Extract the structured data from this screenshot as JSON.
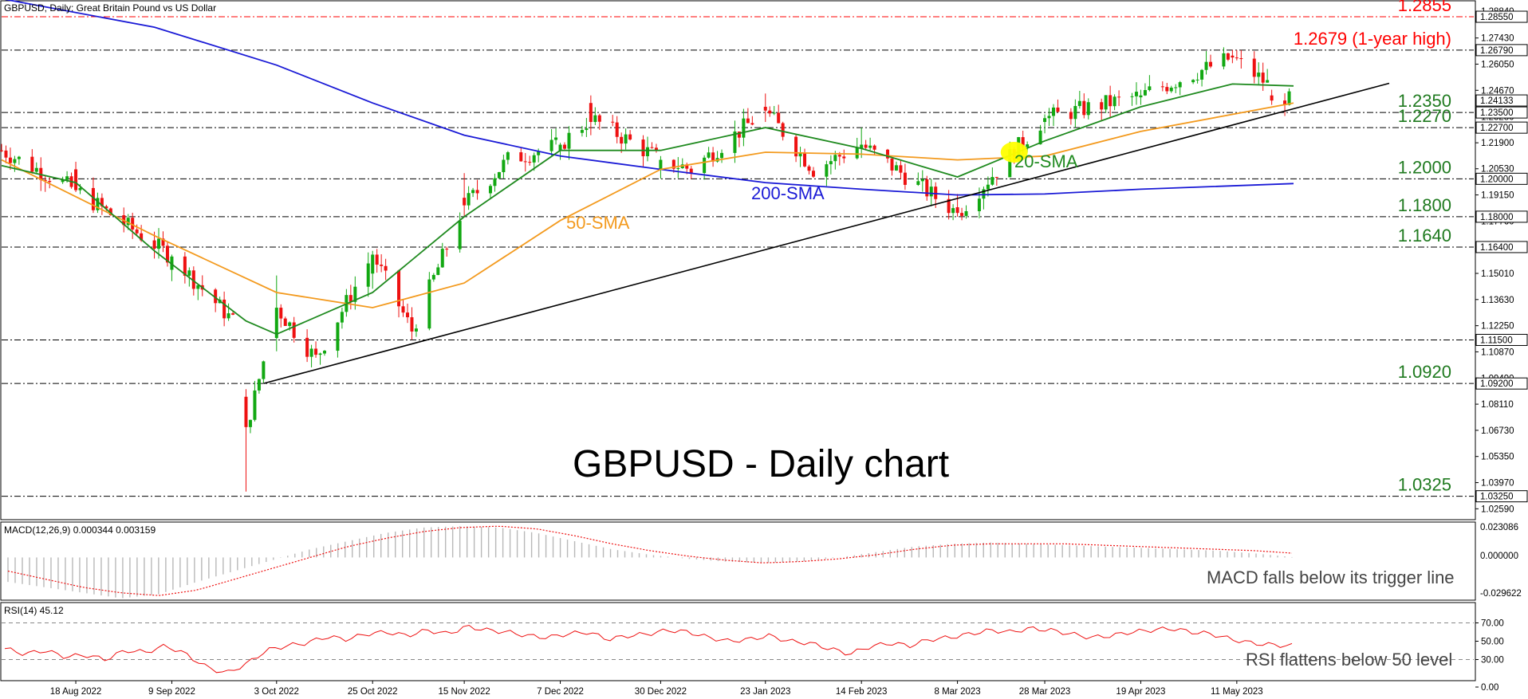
{
  "header": {
    "title": "GBPUSD, Daily:  Great Britain Pound vs US Dollar"
  },
  "chart_data": {
    "type": "candlestick",
    "title": "GBPUSD - Daily chart",
    "price_axis": {
      "ticks": [
        "1.28840",
        "1.27430",
        "1.26050",
        "1.24670",
        "1.23280",
        "1.21900",
        "1.20530",
        "1.19150",
        "1.17760",
        "1.16390",
        "1.15010",
        "1.13630",
        "1.12250",
        "1.10870",
        "1.09490",
        "1.08110",
        "1.06730",
        "1.05350",
        "1.03970",
        "1.02590"
      ],
      "tick_values": [
        1.2884,
        1.2743,
        1.2605,
        1.2467,
        1.2328,
        1.219,
        1.2053,
        1.1915,
        1.1776,
        1.1639,
        1.1501,
        1.1363,
        1.1225,
        1.1087,
        1.0949,
        1.0811,
        1.0673,
        1.0535,
        1.0397,
        1.0259
      ],
      "ylim": [
        1.021,
        1.2935
      ]
    },
    "date_axis": {
      "ticks": [
        "18 Aug 2022",
        "9 Sep 2022",
        "3 Oct 2022",
        "25 Oct 2022",
        "15 Nov 2022",
        "7 Dec 2022",
        "30 Dec 2022",
        "23 Jan 2023",
        "14 Feb 2023",
        "8 Mar 2023",
        "28 Mar 2023",
        "19 Apr 2023",
        "11 May 2023"
      ]
    },
    "levels": [
      {
        "value": 1.2855,
        "label": "1.2855",
        "tag": "1.28550",
        "color": "#ff0000",
        "label_color": "#ff0000"
      },
      {
        "value": 1.2679,
        "label": "1.2679 (1-year high)",
        "tag": "1.26790",
        "color": "#000000",
        "label_color": "#ff0000"
      },
      {
        "value": 1.235,
        "label": "1.2350",
        "tag": "1.23500",
        "color": "#000000",
        "label_color": "#1f7a1f"
      },
      {
        "value": 1.227,
        "label": "1.2270",
        "tag": "1.22700",
        "color": "#000000",
        "label_color": "#1f7a1f"
      },
      {
        "value": 1.2,
        "label": "1.2000",
        "tag": "1.20000",
        "color": "#000000",
        "label_color": "#1f7a1f"
      },
      {
        "value": 1.18,
        "label": "1.1800",
        "tag": "1.18000",
        "color": "#000000",
        "label_color": "#1f7a1f"
      },
      {
        "value": 1.164,
        "label": "1.1640",
        "tag": "1.16400",
        "color": "#000000",
        "label_color": "#1f7a1f"
      },
      {
        "value": 1.115,
        "label": "",
        "tag": "1.11500",
        "color": "#000000",
        "label_color": "#1f7a1f"
      },
      {
        "value": 1.092,
        "label": "1.0920",
        "tag": "1.09200",
        "color": "#000000",
        "label_color": "#1f7a1f"
      },
      {
        "value": 1.0325,
        "label": "1.0325",
        "tag": "1.03250",
        "color": "#000000",
        "label_color": "#1f7a1f"
      }
    ],
    "current_price": "1.24133",
    "candles": [
      {
        "date": "2022-08-18",
        "open": 1.205,
        "high": 1.209,
        "low": 1.193,
        "close": 1.194
      },
      {
        "date": "2022-09-09",
        "open": 1.152,
        "high": 1.16,
        "low": 1.146,
        "close": 1.159
      },
      {
        "date": "2022-09-26",
        "open": 1.085,
        "high": 1.089,
        "low": 1.035,
        "close": 1.069
      },
      {
        "date": "2022-10-03",
        "open": 1.116,
        "high": 1.149,
        "low": 1.109,
        "close": 1.132
      },
      {
        "date": "2022-10-25",
        "open": 1.15,
        "high": 1.162,
        "low": 1.142,
        "close": 1.16
      },
      {
        "date": "2022-11-15",
        "open": 1.19,
        "high": 1.203,
        "low": 1.18,
        "close": 1.186
      },
      {
        "date": "2022-12-07",
        "open": 1.215,
        "high": 1.219,
        "low": 1.21,
        "close": 1.218
      },
      {
        "date": "2022-12-14",
        "open": 1.24,
        "high": 1.244,
        "low": 1.223,
        "close": 1.23
      },
      {
        "date": "2022-12-30",
        "open": 1.205,
        "high": 1.212,
        "low": 1.2,
        "close": 1.21
      },
      {
        "date": "2023-01-23",
        "open": 1.238,
        "high": 1.245,
        "low": 1.23,
        "close": 1.236
      },
      {
        "date": "2023-02-14",
        "open": 1.216,
        "high": 1.227,
        "low": 1.211,
        "close": 1.218
      },
      {
        "date": "2023-03-08",
        "open": 1.185,
        "high": 1.192,
        "low": 1.18,
        "close": 1.182
      },
      {
        "date": "2023-03-28",
        "open": 1.23,
        "high": 1.234,
        "low": 1.224,
        "close": 1.232
      },
      {
        "date": "2023-04-19",
        "open": 1.243,
        "high": 1.247,
        "low": 1.239,
        "close": 1.244
      },
      {
        "date": "2023-05-10",
        "open": 1.265,
        "high": 1.268,
        "low": 1.261,
        "close": 1.264
      },
      {
        "date": "2023-05-19",
        "open": 1.244,
        "high": 1.247,
        "low": 1.239,
        "close": 1.2413
      }
    ],
    "trendline": {
      "from": {
        "date": "2022-09-30",
        "value": 1.092
      },
      "to": {
        "date": "2023-05-24",
        "value": 1.242
      },
      "color": "#000000"
    },
    "series": [
      {
        "name": "200-SMA",
        "color": "#1a1ad6",
        "points": [
          [
            "2022-08-01",
            1.295
          ],
          [
            "2022-09-05",
            1.28
          ],
          [
            "2022-10-03",
            1.26
          ],
          [
            "2022-10-25",
            1.24
          ],
          [
            "2022-11-15",
            1.223
          ],
          [
            "2022-12-07",
            1.212
          ],
          [
            "2022-12-30",
            1.205
          ],
          [
            "2023-01-23",
            1.198
          ],
          [
            "2023-02-14",
            1.1945
          ],
          [
            "2023-03-08",
            1.1915
          ],
          [
            "2023-03-28",
            1.192
          ],
          [
            "2023-04-19",
            1.1945
          ],
          [
            "2023-05-24",
            1.1975
          ]
        ]
      },
      {
        "name": "50-SMA",
        "color": "#f39a1e",
        "points": [
          [
            "2022-08-01",
            1.21
          ],
          [
            "2022-09-05",
            1.17
          ],
          [
            "2022-10-03",
            1.14
          ],
          [
            "2022-10-25",
            1.132
          ],
          [
            "2022-11-15",
            1.145
          ],
          [
            "2022-12-07",
            1.178
          ],
          [
            "2022-12-30",
            1.205
          ],
          [
            "2023-01-23",
            1.214
          ],
          [
            "2023-02-14",
            1.213
          ],
          [
            "2023-03-08",
            1.21
          ],
          [
            "2023-03-28",
            1.212
          ],
          [
            "2023-04-19",
            1.225
          ],
          [
            "2023-05-24",
            1.24
          ]
        ]
      },
      {
        "name": "20-SMA",
        "color": "#1f8a1f",
        "points": [
          [
            "2022-08-01",
            1.207
          ],
          [
            "2022-08-18",
            1.198
          ],
          [
            "2022-09-05",
            1.162
          ],
          [
            "2022-09-26",
            1.125
          ],
          [
            "2022-10-03",
            1.118
          ],
          [
            "2022-10-25",
            1.14
          ],
          [
            "2022-11-15",
            1.18
          ],
          [
            "2022-12-07",
            1.215
          ],
          [
            "2022-12-30",
            1.215
          ],
          [
            "2023-01-23",
            1.227
          ],
          [
            "2023-02-14",
            1.216
          ],
          [
            "2023-03-08",
            1.201
          ],
          [
            "2023-03-28",
            1.22
          ],
          [
            "2023-04-19",
            1.238
          ],
          [
            "2023-05-10",
            1.25
          ],
          [
            "2023-05-24",
            1.249
          ]
        ]
      }
    ],
    "annotations": [
      {
        "text": "200-SMA",
        "color": "#1a1ad6"
      },
      {
        "text": "50-SMA",
        "color": "#f39a1e"
      },
      {
        "text": "20-SMA",
        "color": "#1f8a1f"
      }
    ],
    "highlight_color": "#ffff00",
    "macd": {
      "label": "MACD(12,26,9) 0.000344 0.003159",
      "ticks": [
        "0.023086",
        "0.000000",
        "-0.029622"
      ],
      "annotation": "MACD falls below its trigger line",
      "histogram": [
        -0.018,
        -0.022,
        -0.026,
        -0.03,
        -0.027,
        -0.018,
        -0.01,
        -0.002,
        0.006,
        0.012,
        0.018,
        0.022,
        0.023,
        0.022,
        0.018,
        0.012,
        0.006,
        0.002,
        -0.001,
        -0.003,
        -0.004,
        -0.003,
        0.0,
        0.004,
        0.008,
        0.01,
        0.011,
        0.01,
        0.009,
        0.008,
        0.007,
        0.006,
        0.005,
        0.003,
        0.0003
      ],
      "signal": [
        -0.01,
        -0.016,
        -0.022,
        -0.026,
        -0.028,
        -0.024,
        -0.016,
        -0.008,
        0.0,
        0.008,
        0.014,
        0.019,
        0.022,
        0.023,
        0.021,
        0.016,
        0.01,
        0.005,
        0.001,
        -0.002,
        -0.004,
        -0.003,
        -0.001,
        0.002,
        0.006,
        0.009,
        0.01,
        0.01,
        0.01,
        0.009,
        0.008,
        0.007,
        0.006,
        0.005,
        0.0032
      ]
    },
    "rsi": {
      "label": "RSI(14) 45.12",
      "ticks": [
        "70.00",
        "50.00",
        "30.00",
        "0.00"
      ],
      "tick_values": [
        70,
        50,
        30,
        0
      ],
      "annotation": "RSI flattens below 50 level",
      "values": [
        42,
        36,
        40,
        33,
        35,
        30,
        40,
        38,
        45,
        36,
        22,
        15,
        25,
        40,
        45,
        48,
        55,
        52,
        58,
        60,
        56,
        62,
        58,
        66,
        62,
        60,
        56,
        54,
        58,
        60,
        52,
        56,
        58,
        62,
        60,
        54,
        50,
        52,
        56,
        50,
        48,
        42,
        36,
        44,
        48,
        45,
        52,
        54,
        58,
        62,
        60,
        64,
        62,
        58,
        54,
        56,
        60,
        62,
        64,
        60,
        58,
        52,
        48,
        46,
        45
      ]
    }
  }
}
